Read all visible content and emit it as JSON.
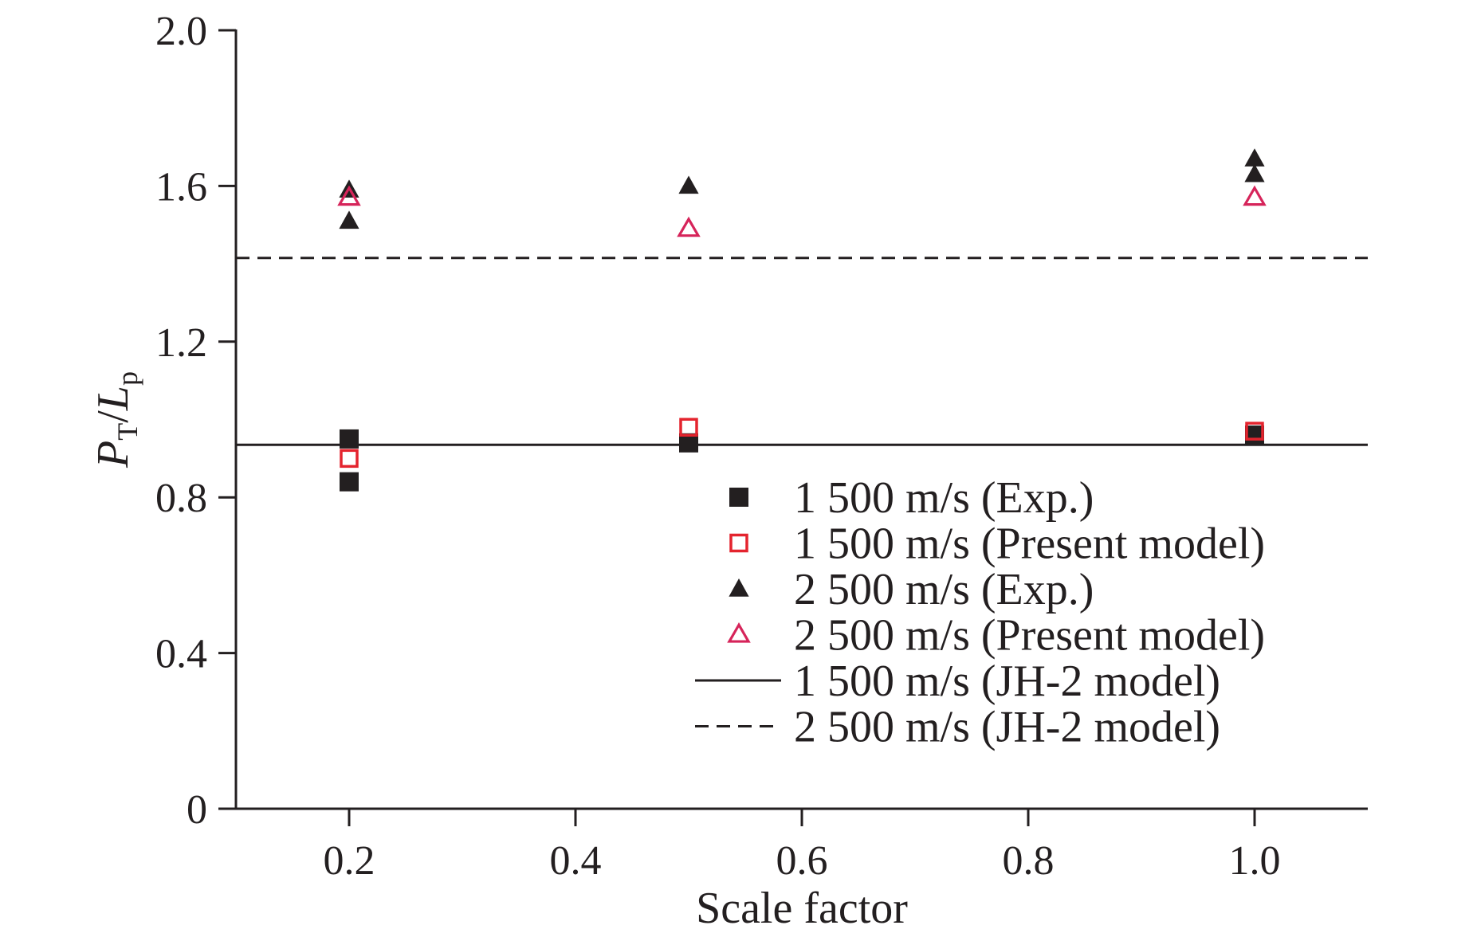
{
  "chart_data": {
    "type": "scatter",
    "xlabel": "Scale factor",
    "ylabel": {
      "main1": "P",
      "sub1": "T",
      "sep": "/",
      "main2": "L",
      "sub2": "p"
    },
    "xlim": [
      0.1,
      1.1
    ],
    "ylim": [
      0,
      2.0
    ],
    "xticks": [
      {
        "value": 0.2,
        "label": "0.2"
      },
      {
        "value": 0.4,
        "label": "0.4"
      },
      {
        "value": 0.6,
        "label": "0.6"
      },
      {
        "value": 0.8,
        "label": "0.8"
      },
      {
        "value": 1.0,
        "label": "1.0"
      }
    ],
    "yticks": [
      {
        "value": 0,
        "label": "0"
      },
      {
        "value": 0.4,
        "label": "0.4"
      },
      {
        "value": 0.8,
        "label": "0.8"
      },
      {
        "value": 1.2,
        "label": "1.2"
      },
      {
        "value": 1.6,
        "label": "1.6"
      },
      {
        "value": 2.0,
        "label": "2.0"
      }
    ],
    "grid": false,
    "legend_position": "lower-right",
    "series": [
      {
        "name": "1 500 m/s (Exp.)",
        "marker": "square-filled",
        "color": "#231f20",
        "points": [
          {
            "x": 0.2,
            "y": 0.95
          },
          {
            "x": 0.2,
            "y": 0.84
          },
          {
            "x": 0.5,
            "y": 0.94
          },
          {
            "x": 1.0,
            "y": 0.96
          }
        ]
      },
      {
        "name": "1 500 m/s (Present model)",
        "marker": "square-open",
        "color": "#e4242e",
        "points": [
          {
            "x": 0.2,
            "y": 0.9
          },
          {
            "x": 0.5,
            "y": 0.98
          },
          {
            "x": 1.0,
            "y": 0.97
          }
        ]
      },
      {
        "name": "2 500 m/s (Exp.)",
        "marker": "triangle-filled",
        "color": "#231f20",
        "points": [
          {
            "x": 0.2,
            "y": 1.59
          },
          {
            "x": 0.2,
            "y": 1.51
          },
          {
            "x": 0.5,
            "y": 1.6
          },
          {
            "x": 1.0,
            "y": 1.67
          },
          {
            "x": 1.0,
            "y": 1.63
          }
        ]
      },
      {
        "name": "2 500 m/s (Present model)",
        "marker": "triangle-open",
        "color": "#d6245a",
        "points": [
          {
            "x": 0.2,
            "y": 1.57
          },
          {
            "x": 0.5,
            "y": 1.49
          },
          {
            "x": 1.0,
            "y": 1.57
          }
        ]
      },
      {
        "name": "1 500 m/s (JH-2 model)",
        "marker": "line-solid",
        "color": "#231f20",
        "hline": 0.935
      },
      {
        "name": "2 500 m/s (JH-2 model)",
        "marker": "line-dashed",
        "color": "#231f20",
        "hline": 1.415
      }
    ]
  }
}
